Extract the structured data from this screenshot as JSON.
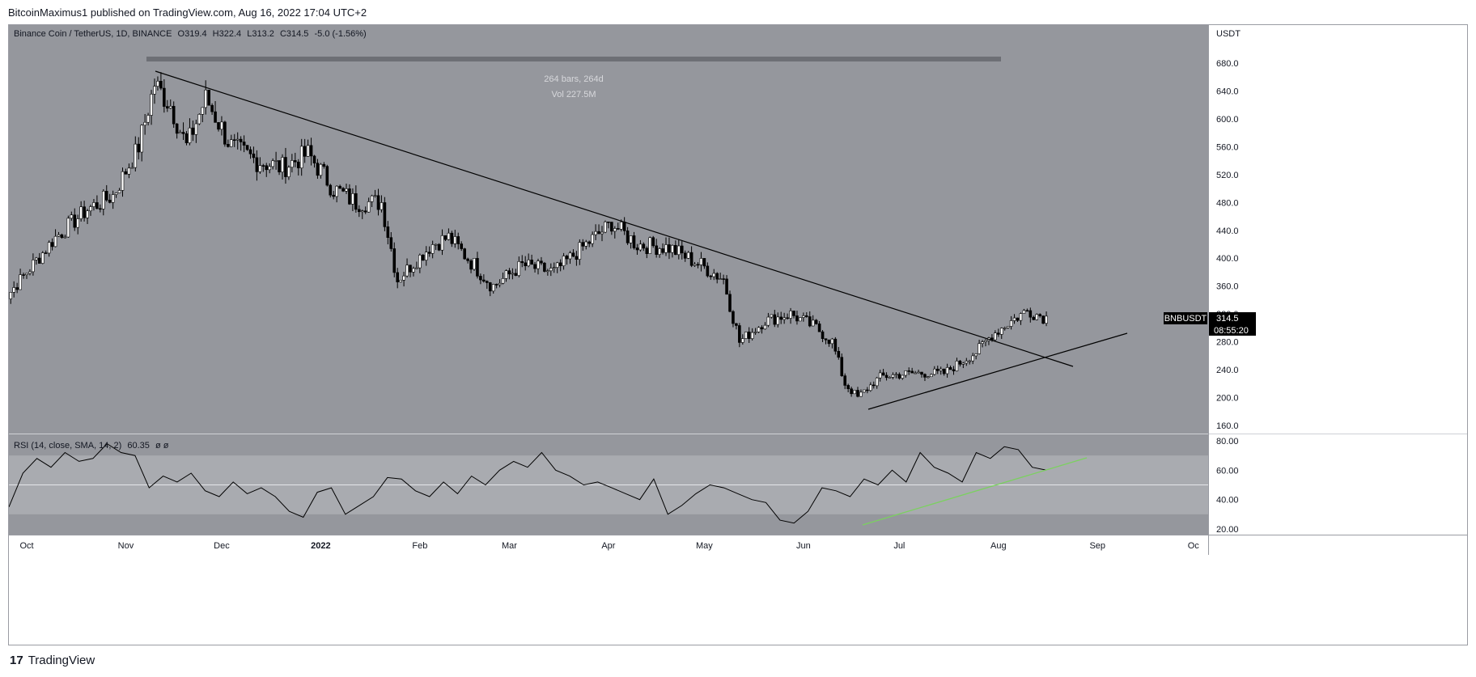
{
  "header": {
    "published": "BitcoinMaximus1 published on TradingView.com, Aug 16, 2022 17:04 UTC+2"
  },
  "legend": {
    "symbol": "Binance Coin / TetherUS, 1D, BINANCE",
    "o_label": "O",
    "o_value": "319.4",
    "h_label": "H",
    "h_value": "322.4",
    "l_label": "L",
    "l_value": "313.2",
    "c_label": "C",
    "c_value": "314.5",
    "change": "-5.0 (-1.56%)"
  },
  "measure": {
    "bars": "264 bars, 264d",
    "vol": "Vol 227.5M"
  },
  "price_tag": {
    "symbol": "BNBUSDT",
    "price": "314.5",
    "countdown": "08:55:20"
  },
  "rsi_legend": {
    "label": "RSI (14, close, SMA, 14, 2)",
    "value": "60.35",
    "extra": "ø ø"
  },
  "footer": {
    "logo_glyph": "17",
    "brand": "TradingView"
  },
  "colors": {
    "pane_bg": "#95979d",
    "rsi_band": "#a9abb0",
    "candle": "#000000",
    "trendline": "#000000",
    "rsi_trend": "#7bd15f",
    "scale_bg": "#ffffff",
    "tag_bg": "#000000"
  },
  "chart_data": [
    {
      "type": "candlestick",
      "title": "Binance Coin / TetherUS, 1D, BINANCE",
      "currency": "USDT",
      "y_ticks": [
        "160.0",
        "200.0",
        "240.0",
        "280.0",
        "320.0",
        "360.0",
        "400.0",
        "440.0",
        "480.0",
        "520.0",
        "560.0",
        "600.0",
        "640.0",
        "680.0"
      ],
      "ylim": [
        150,
        720
      ],
      "x_ticks": [
        "Oct",
        "Nov",
        "Dec",
        "2022",
        "Feb",
        "Mar",
        "Apr",
        "May",
        "Jun",
        "Jul",
        "Aug",
        "Sep",
        "Oc"
      ],
      "approx_close_path": [
        {
          "date": "2021-09-22",
          "close": 330
        },
        {
          "date": "2021-10-01",
          "close": 380
        },
        {
          "date": "2021-10-10",
          "close": 430
        },
        {
          "date": "2021-10-20",
          "close": 470
        },
        {
          "date": "2021-10-28",
          "close": 490
        },
        {
          "date": "2021-11-05",
          "close": 560
        },
        {
          "date": "2021-11-10",
          "close": 650
        },
        {
          "date": "2021-11-15",
          "close": 620
        },
        {
          "date": "2021-11-20",
          "close": 560
        },
        {
          "date": "2021-11-26",
          "close": 630
        },
        {
          "date": "2021-12-04",
          "close": 560
        },
        {
          "date": "2021-12-12",
          "close": 540
        },
        {
          "date": "2021-12-20",
          "close": 530
        },
        {
          "date": "2021-12-28",
          "close": 550
        },
        {
          "date": "2022-01-05",
          "close": 500
        },
        {
          "date": "2022-01-12",
          "close": 480
        },
        {
          "date": "2022-01-20",
          "close": 480
        },
        {
          "date": "2022-01-25",
          "close": 370
        },
        {
          "date": "2022-02-05",
          "close": 420
        },
        {
          "date": "2022-02-10",
          "close": 430
        },
        {
          "date": "2022-02-24",
          "close": 360
        },
        {
          "date": "2022-03-05",
          "close": 390
        },
        {
          "date": "2022-03-15",
          "close": 380
        },
        {
          "date": "2022-03-25",
          "close": 420
        },
        {
          "date": "2022-04-02",
          "close": 450
        },
        {
          "date": "2022-04-10",
          "close": 420
        },
        {
          "date": "2022-04-20",
          "close": 415
        },
        {
          "date": "2022-04-30",
          "close": 390
        },
        {
          "date": "2022-05-07",
          "close": 370
        },
        {
          "date": "2022-05-12",
          "close": 280
        },
        {
          "date": "2022-05-20",
          "close": 310
        },
        {
          "date": "2022-05-28",
          "close": 320
        },
        {
          "date": "2022-06-05",
          "close": 300
        },
        {
          "date": "2022-06-10",
          "close": 280
        },
        {
          "date": "2022-06-14",
          "close": 220
        },
        {
          "date": "2022-06-18",
          "close": 200
        },
        {
          "date": "2022-06-25",
          "close": 230
        },
        {
          "date": "2022-07-05",
          "close": 235
        },
        {
          "date": "2022-07-15",
          "close": 235
        },
        {
          "date": "2022-07-25",
          "close": 265
        },
        {
          "date": "2022-07-30",
          "close": 290
        },
        {
          "date": "2022-08-05",
          "close": 310
        },
        {
          "date": "2022-08-10",
          "close": 325
        },
        {
          "date": "2022-08-16",
          "close": 314.5
        }
      ],
      "annotations": [
        {
          "type": "descending trendline",
          "from": {
            "date": "2021-11-11",
            "price": 668
          },
          "to": {
            "date": "2022-08-25",
            "price": 248
          }
        },
        {
          "type": "ascending support line",
          "from": {
            "date": "2022-06-18",
            "price": 186
          },
          "to": {
            "date": "2022-09-01",
            "price": 292
          }
        },
        {
          "type": "measure",
          "label": "264 bars, 264d",
          "sub": "Vol 227.5M"
        }
      ]
    },
    {
      "type": "line",
      "title": "RSI (14, close, SMA, 14, 2)",
      "y_ticks": [
        "20.00",
        "40.00",
        "60.00",
        "80.00"
      ],
      "ylim": [
        18,
        84
      ],
      "bands": {
        "upper": 70,
        "middle": 50,
        "lower": 30
      },
      "last_value": 60.35,
      "approx_values": [
        35,
        58,
        68,
        62,
        72,
        66,
        68,
        78,
        72,
        70,
        48,
        56,
        52,
        58,
        46,
        42,
        52,
        44,
        48,
        42,
        32,
        28,
        45,
        48,
        30,
        36,
        42,
        55,
        54,
        46,
        42,
        52,
        44,
        56,
        50,
        60,
        66,
        62,
        72,
        60,
        56,
        50,
        52,
        48,
        44,
        40,
        54,
        30,
        36,
        44,
        50,
        48,
        44,
        40,
        38,
        26,
        24,
        32,
        48,
        46,
        42,
        54,
        50,
        60,
        52,
        72,
        62,
        58,
        52,
        72,
        68,
        76,
        74,
        62,
        60
      ],
      "trendline": {
        "from": {
          "date": "2022-06-18",
          "value": 23
        },
        "to": {
          "date": "2022-09-01",
          "value": 68
        }
      }
    }
  ]
}
